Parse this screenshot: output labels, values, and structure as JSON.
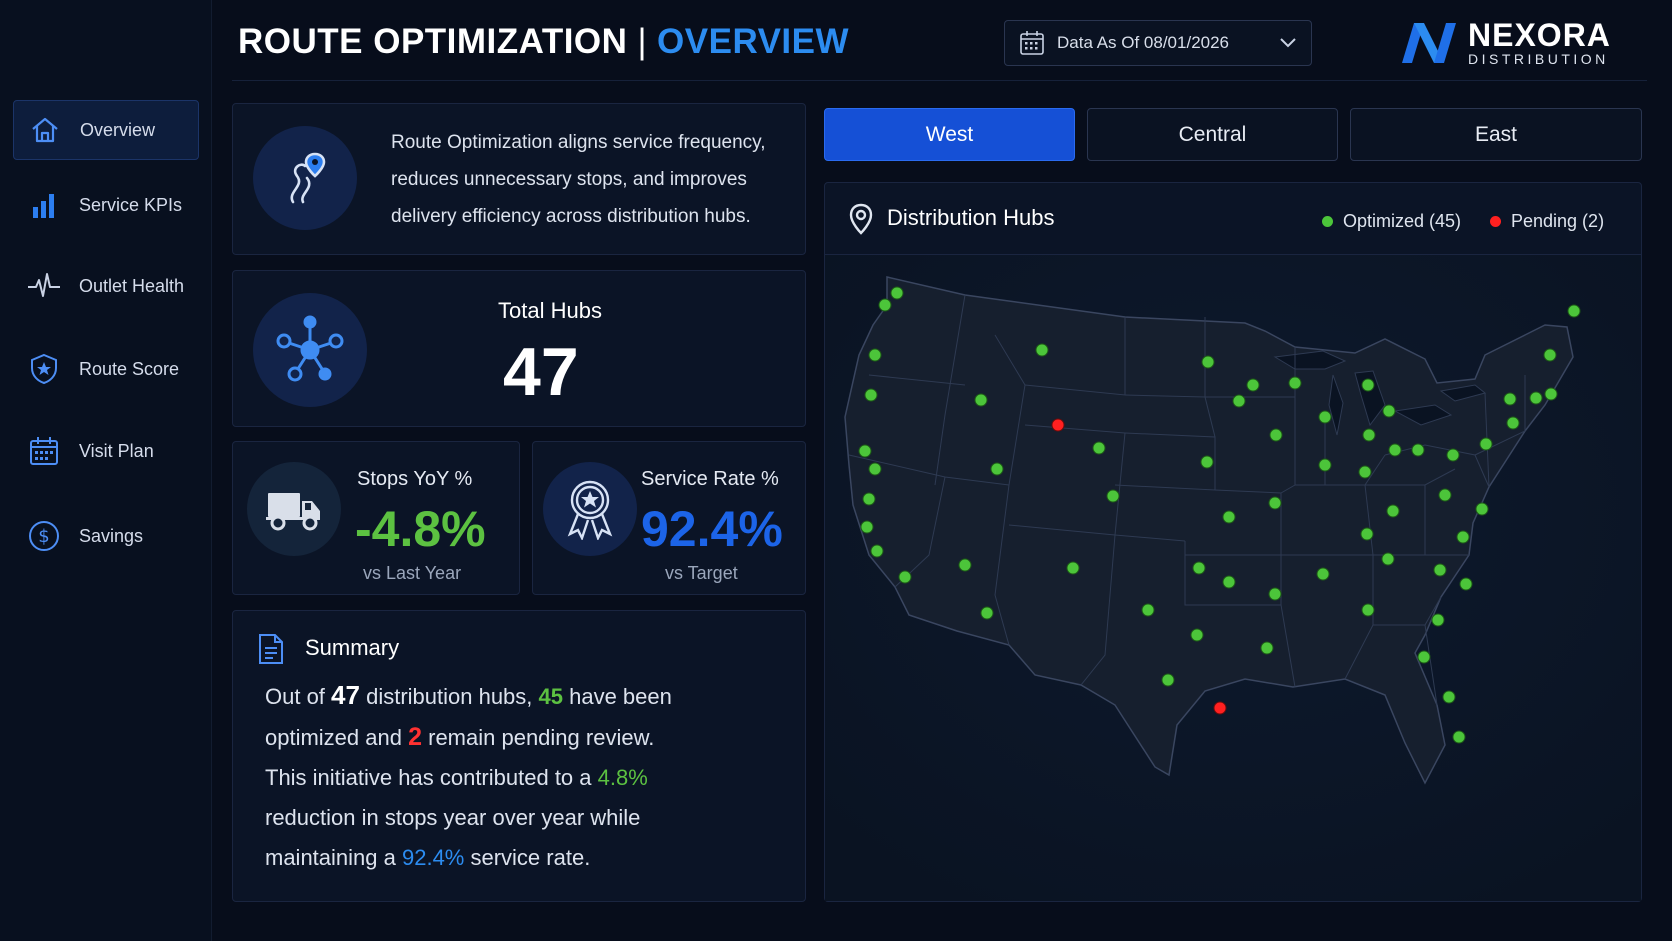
{
  "header": {
    "title_main": "ROUTE OPTIMIZATION",
    "separator": "|",
    "title_accent": "OVERVIEW",
    "date_label": "Data As Of 08/01/2026"
  },
  "logo": {
    "brand": "NEXORA",
    "sub": "DISTRIBUTION"
  },
  "sidebar": {
    "items": [
      {
        "label": "Overview",
        "icon": "home-icon",
        "active": true
      },
      {
        "label": "Service KPIs",
        "icon": "bar-chart-icon",
        "active": false
      },
      {
        "label": "Outlet Health",
        "icon": "pulse-icon",
        "active": false
      },
      {
        "label": "Route Score",
        "icon": "shield-star-icon",
        "active": false
      },
      {
        "label": "Visit Plan",
        "icon": "calendar-icon",
        "active": false
      },
      {
        "label": "Savings",
        "icon": "dollar-icon",
        "active": false
      }
    ]
  },
  "intro": {
    "icon": "route-pin-icon",
    "text": "Route Optimization aligns service frequency, reduces unnecessary stops, and improves delivery efficiency across distribution hubs."
  },
  "total_hubs": {
    "label": "Total Hubs",
    "value": "47",
    "icon": "network-icon"
  },
  "stops": {
    "label": "Stops YoY %",
    "value": "-4.8%",
    "sub": "vs Last Year",
    "icon": "truck-icon",
    "color": "#5cc141"
  },
  "service_rate": {
    "label": "Service Rate %",
    "value": "92.4%",
    "sub": "vs Target",
    "icon": "award-icon",
    "color": "#1c64e8"
  },
  "summary": {
    "title": "Summary",
    "icon": "document-icon",
    "p1": "Out of ",
    "total": "47",
    "p2": " distribution hubs, ",
    "optimized": "45",
    "p3": " have been optimized and ",
    "pending": "2",
    "p4": " remain pending review. This initiative has contributed to a ",
    "reduction": "4.8%",
    "p5": " reduction in stops year over year while maintaining a ",
    "rate": "92.4%",
    "p6": " service rate."
  },
  "tabs": [
    {
      "label": "West",
      "active": true
    },
    {
      "label": "Central",
      "active": false
    },
    {
      "label": "East",
      "active": false
    }
  ],
  "map": {
    "title": "Distribution Hubs",
    "icon": "map-pin-icon",
    "legend_optimized": "Optimized (45)",
    "legend_pending": "Pending (2)",
    "optimized_color": "#4cc53a",
    "pending_color": "#ff2020"
  }
}
